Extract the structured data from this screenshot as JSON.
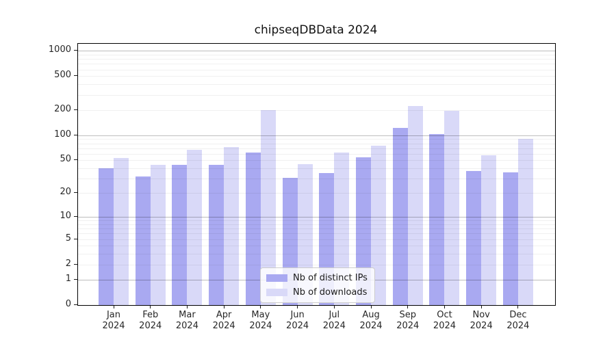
{
  "title": "chipseqDBData 2024",
  "chart_data": {
    "type": "bar",
    "title": "chipseqDBData 2024",
    "categories": [
      "Jan 2024",
      "Feb 2024",
      "Mar 2024",
      "Apr 2024",
      "May 2024",
      "Jun 2024",
      "Jul 2024",
      "Aug 2024",
      "Sep 2024",
      "Oct 2024",
      "Nov 2024",
      "Dec 2024"
    ],
    "series": [
      {
        "name": "Nb of distinct IPs",
        "color": "#a9a9f1",
        "values": [
          40,
          32,
          44,
          44,
          62,
          31,
          35,
          54,
          122,
          103,
          37,
          36
        ]
      },
      {
        "name": "Nb of downloads",
        "color": "#d9d9f8",
        "values": [
          53,
          44,
          67,
          72,
          198,
          45,
          62,
          75,
          223,
          194,
          58,
          90
        ]
      }
    ],
    "xlabel": "",
    "ylabel": "",
    "yscale": "log10(1+x)",
    "yticks": [
      0,
      1,
      2,
      5,
      10,
      20,
      50,
      100,
      200,
      500,
      1000
    ],
    "ylim": [
      0,
      1205
    ],
    "grid": "horizontal, major at decades + faint minors",
    "legend_position": "lower center"
  },
  "colors": {
    "background": "#ffffff",
    "bar_distinct_ips": "#a9a9f1",
    "bar_downloads": "#d9d9f8",
    "grid_major": "#bdbdbd",
    "grid_minor": "#f0f0f0",
    "axis_line": "#000000",
    "tick_text": "#262626",
    "legend_border": "#cccccc"
  }
}
